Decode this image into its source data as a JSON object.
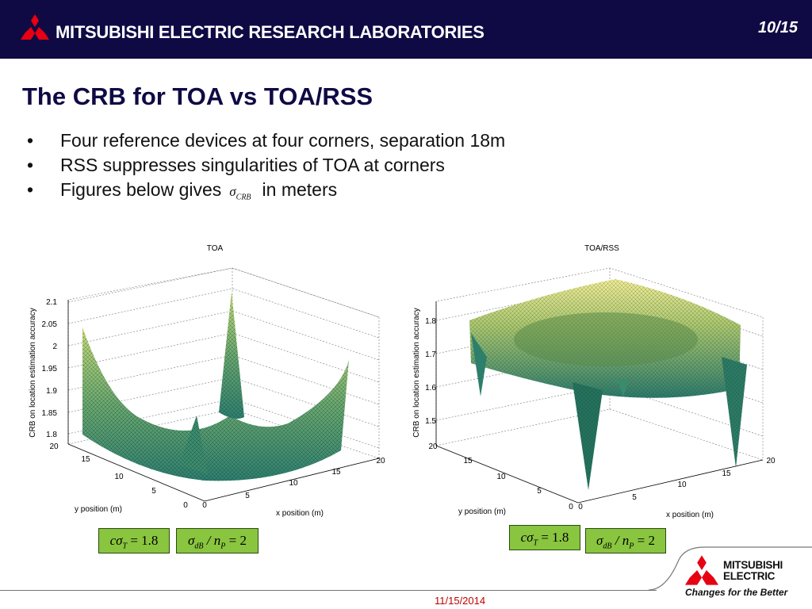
{
  "header": {
    "company": "MITSUBISHI ELECTRIC RESEARCH LABORATORIES",
    "page": "10/15",
    "colors": {
      "bar": "#0f0a44",
      "logo": "#e60012"
    }
  },
  "slide": {
    "title": "The CRB for TOA vs TOA/RSS",
    "bullets": [
      {
        "text": "Four reference devices at four corners, separation 18m"
      },
      {
        "text": "RSS suppresses singularities of TOA at corners"
      },
      {
        "text_before": "Figures below gives",
        "symbol": "σ",
        "symbol_sub": "CRB",
        "text_after": "in meters"
      }
    ]
  },
  "plots": {
    "toa": {
      "title": "TOA",
      "zlabel": "CRB on location estimation accuracy",
      "xlabel": "x position (m)",
      "ylabel": "y position (m)",
      "zticks": [
        "2.1",
        "2.05",
        "2",
        "1.95",
        "1.9",
        "1.85",
        "1.8"
      ],
      "xticks": [
        "0",
        "5",
        "10",
        "15",
        "20"
      ],
      "yticks": [
        "20",
        "15",
        "10",
        "5",
        "0"
      ],
      "colormap": "summer"
    },
    "toarss": {
      "title": "TOA/RSS",
      "zlabel": "CRB on location estimation accuracy",
      "xlabel": "x position (m)",
      "ylabel": "y position (m)",
      "zticks": [
        "1.8",
        "1.7",
        "1.6",
        "1.5"
      ],
      "xticks": [
        "0",
        "5",
        "10",
        "15",
        "20"
      ],
      "yticks": [
        "20",
        "15",
        "10",
        "5",
        "0"
      ],
      "colormap": "summer"
    }
  },
  "equations": {
    "left_a": {
      "lhs": "cσ",
      "sub": "T",
      "rhs": "= 1.8"
    },
    "left_b": {
      "lhs": "σ",
      "sub": "dB",
      "mid": "/ n",
      "sub2": "P",
      "rhs": "= 2"
    },
    "right_a": {
      "lhs": "cσ",
      "sub": "T",
      "rhs": "= 1.8"
    },
    "right_b": {
      "lhs": "σ",
      "sub": "dB",
      "mid": "/ n",
      "sub2": "P",
      "rhs": "= 2"
    },
    "box_color": "#89c53f"
  },
  "footer": {
    "date": "11/15/2014",
    "logo_line1": "MITSUBISHI",
    "logo_line2": "ELECTRIC",
    "tagline": "Changes for the Better"
  }
}
